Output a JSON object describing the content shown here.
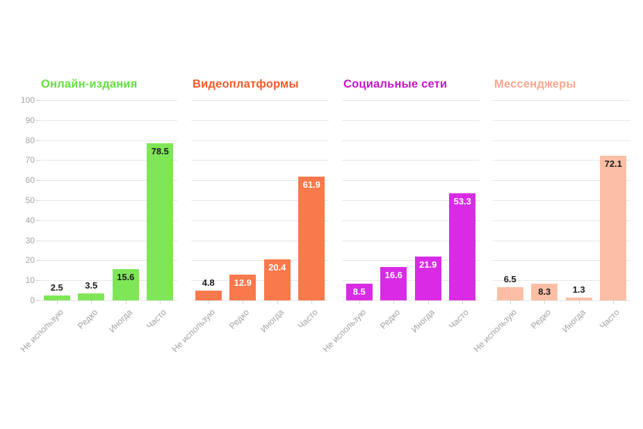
{
  "page": {
    "background": "#ffffff"
  },
  "chart_data": {
    "type": "bar",
    "layout": "4 small-multiple column charts side by side, shared y axis shown only on first panel",
    "categories": [
      "Не использую",
      "Редко",
      "Иногда",
      "Часто"
    ],
    "ylim": [
      0,
      100
    ],
    "yticks": [
      0,
      10,
      20,
      30,
      40,
      50,
      60,
      70,
      80,
      90,
      100
    ],
    "grid": true,
    "legend": "none",
    "panels": [
      {
        "title": "Онлайн-издания",
        "title_color": "#64e03e",
        "bar_color": "#7fe658",
        "value_label_color_inside": "#1a1a1a",
        "values": [
          2.5,
          3.5,
          15.6,
          78.5
        ]
      },
      {
        "title": "Видеоплатформы",
        "title_color": "#f25a28",
        "bar_color": "#f8794b",
        "value_label_color_inside": "#ffffff",
        "values": [
          4.8,
          12.9,
          20.4,
          61.9
        ]
      },
      {
        "title": "Социальные сети",
        "title_color": "#c714cd",
        "bar_color": "#d92be6",
        "value_label_color_inside": "#ffffff",
        "values": [
          8.5,
          16.6,
          21.9,
          53.3
        ]
      },
      {
        "title": "Мессенджеры",
        "title_color": "#f9a78f",
        "bar_color": "#fcbfa6",
        "value_label_color_inside": "#1a1a1a",
        "values": [
          6.5,
          8.3,
          1.3,
          72.1
        ]
      }
    ],
    "axis_style": {
      "tick_label_color": "#a3a3a3",
      "gridline_color": "#e6e6e6",
      "tick_mark_color": "#cfcfcf",
      "value_label_color_outside": "#1a1a1a"
    }
  }
}
